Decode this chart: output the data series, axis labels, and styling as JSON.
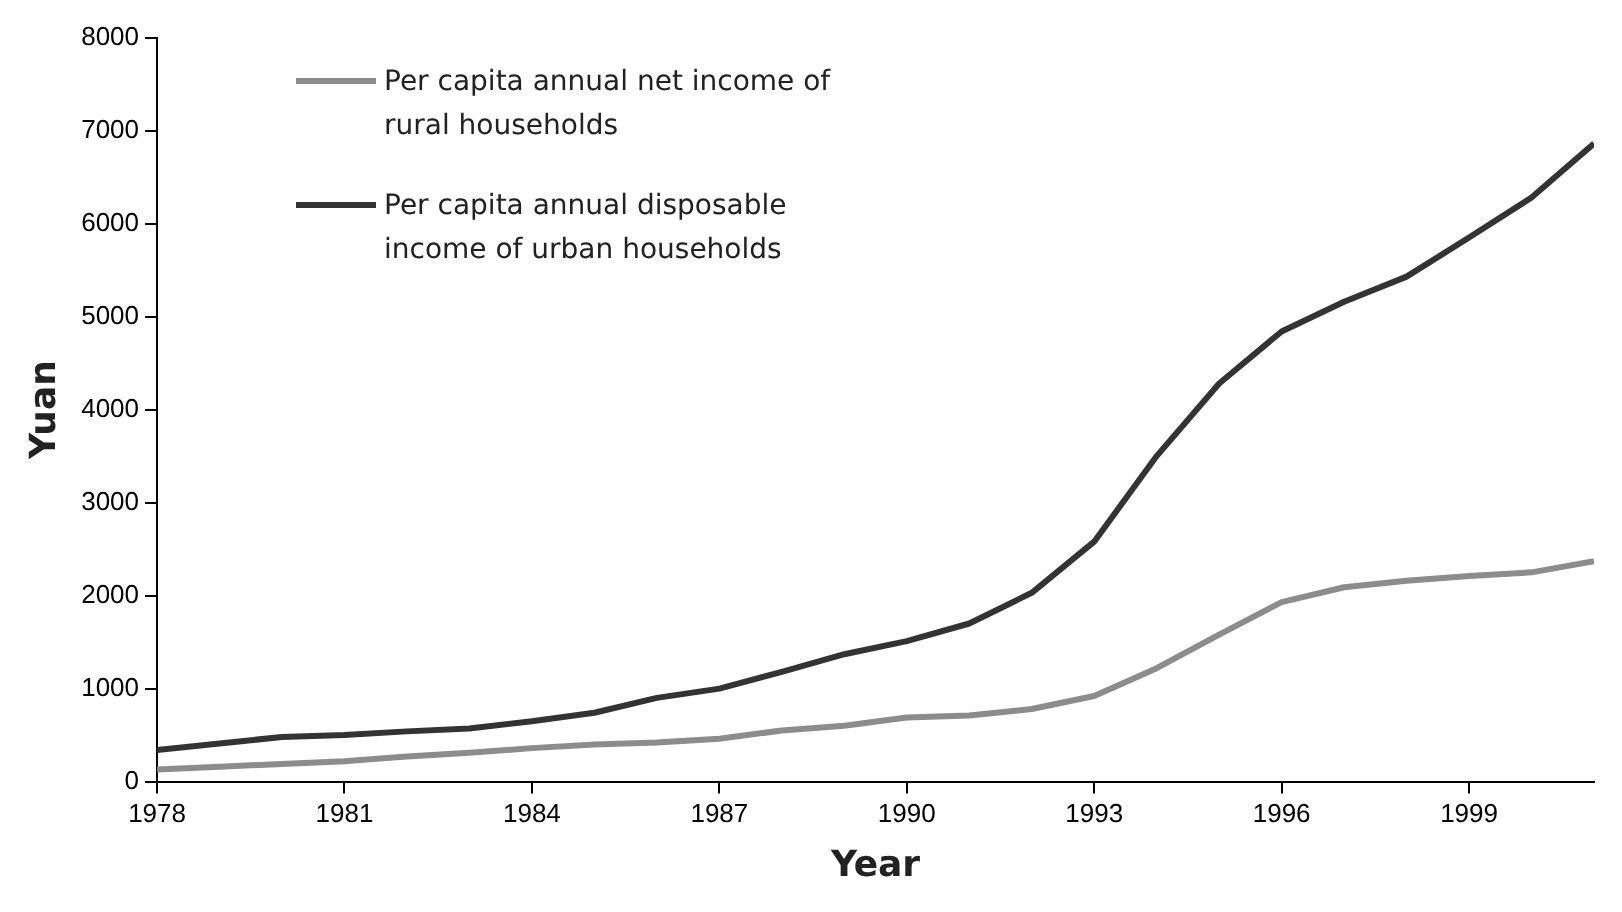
{
  "chart_data": {
    "type": "line",
    "xlabel": "Year",
    "ylabel": "Yuan",
    "x": [
      1978,
      1979,
      1980,
      1981,
      1982,
      1983,
      1984,
      1985,
      1986,
      1987,
      1988,
      1989,
      1990,
      1991,
      1992,
      1993,
      1994,
      1995,
      1996,
      1997,
      1998,
      1999,
      2000,
      2001
    ],
    "series": [
      {
        "name": "Per capita annual net income of rural households",
        "color": "#8c8c8c",
        "values": [
          130,
          160,
          190,
          220,
          270,
          310,
          360,
          400,
          420,
          460,
          550,
          600,
          690,
          710,
          780,
          920,
          1220,
          1580,
          1930,
          2090,
          2160,
          2210,
          2250,
          2370
        ]
      },
      {
        "name": "Per capita annual disposable income of urban households",
        "color": "#333333",
        "values": [
          340,
          410,
          480,
          500,
          540,
          570,
          650,
          740,
          900,
          1000,
          1180,
          1370,
          1510,
          1700,
          2030,
          2580,
          3500,
          4280,
          4840,
          5160,
          5430,
          5850,
          6280,
          6860
        ]
      }
    ],
    "xlim": [
      1978,
      2001
    ],
    "xticks": [
      1978,
      1981,
      1984,
      1987,
      1990,
      1993,
      1996,
      1999
    ],
    "ylim": [
      0,
      8000
    ],
    "yticks": [
      0,
      1000,
      2000,
      3000,
      4000,
      5000,
      6000,
      7000,
      8000
    ],
    "grid": false,
    "legend": "top left",
    "marker": "none",
    "line_style": "solid"
  }
}
